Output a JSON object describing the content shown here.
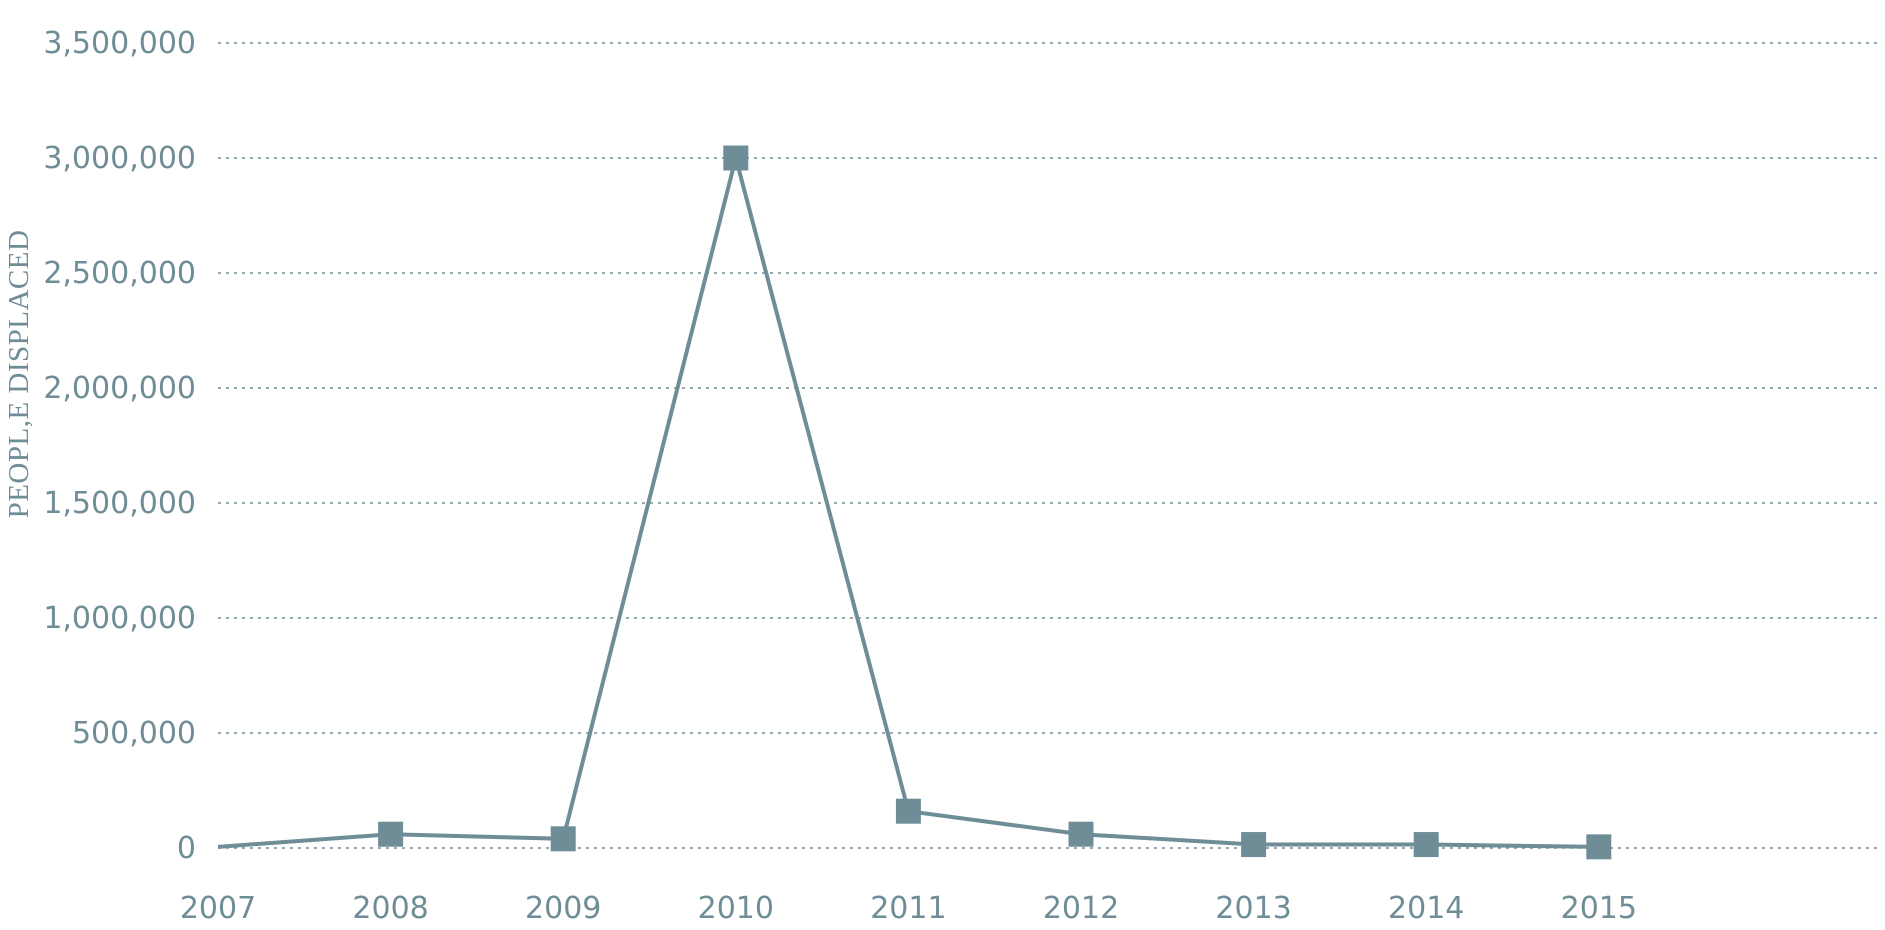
{
  "chart_data": {
    "type": "line",
    "ylabel": "PEOPL,E DISPLACED",
    "x": [
      "2007",
      "2008",
      "2009",
      "2010",
      "2011",
      "2012",
      "2013",
      "2014",
      "2015"
    ],
    "y_ticks": [
      "0",
      "500,000",
      "1,000,000",
      "1,500,000",
      "2,000,000",
      "2,500,000",
      "3,000,000",
      "3,500,000"
    ],
    "ylim": [
      0,
      3500000
    ],
    "grid": true,
    "series": [
      {
        "values": [
          5000,
          60000,
          40000,
          3000000,
          160000,
          60000,
          15000,
          15000,
          5000
        ],
        "markers": [
          false,
          true,
          true,
          true,
          true,
          true,
          true,
          true,
          true
        ]
      }
    ],
    "colors": {
      "series": "#6f8d96",
      "text": "#6f8d96",
      "grid": "#6f8d96"
    }
  }
}
